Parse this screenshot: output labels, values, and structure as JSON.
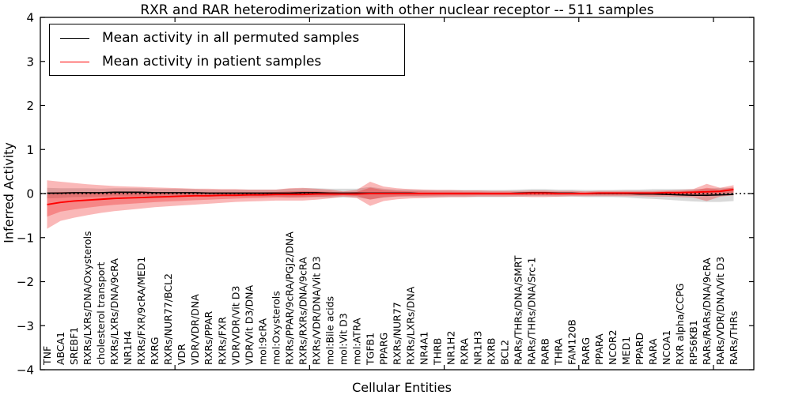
{
  "chart_data": {
    "type": "line",
    "title": "RXR and RAR heterodimerization with other nuclear receptor -- 511 samples",
    "xlabel": "Cellular Entities",
    "ylabel": "Inferred Activity",
    "ylim": [
      -4,
      4
    ],
    "yticks": [
      -4,
      -3,
      -2,
      -1,
      0,
      1,
      2,
      3,
      4
    ],
    "xticks_at_category_index": [
      10,
      20,
      30,
      40,
      50
    ],
    "grid": false,
    "legend_position": "upper left",
    "zero_reference_line": {
      "y": 0,
      "style": "dotted",
      "color": "#000000"
    },
    "categories": [
      "TNF",
      "ABCA1",
      "SREBF1",
      "RXRs/LXRs/DNA/Oxysterols",
      "cholesterol transport",
      "RXRs/LXRs/DNA/9cRA",
      "NR1H4",
      "RXRs/FXR/9cRA/MED1",
      "RXRG",
      "RXRs/NUR77/BCL2",
      "VDR",
      "VDR/VDR/DNA",
      "RXRs/PPAR",
      "RXRs/FXR",
      "VDR/VDR/Vit D3",
      "VDR/Vit D3/DNA",
      "mol:9cRA",
      "mol:Oxysterols",
      "RXRs/PPAR/9cRA/PGJ2/DNA",
      "RXRs/RXRs/DNA/9cRA",
      "RXRs/VDR/DNA/Vit D3",
      "mol:Bile acids",
      "mol:Vit D3",
      "mol:ATRA",
      "TGFB1",
      "PPARG",
      "RXRs/NUR77",
      "RXRs/LXRs/DNA",
      "NR4A1",
      "THRB",
      "NR1H2",
      "RXRA",
      "NR1H3",
      "RXRB",
      "BCL2",
      "RARs/THRs/DNA/SMRT",
      "RARs/THRs/DNA/Src-1",
      "RARB",
      "THRA",
      "FAM120B",
      "RARG",
      "PPARA",
      "NCOR2",
      "MED1",
      "PPARD",
      "RARA",
      "NCOA1",
      "RXR alpha/CCPG",
      "RPS6KB1",
      "RARs/RARs/DNA/9cRA",
      "RARs/VDR/DNA/Vit D3",
      "RARs/THRs"
    ],
    "series": [
      {
        "name": "Mean activity in all permuted samples",
        "color": "#000000",
        "band_color": "rgba(130,130,130,0.30)",
        "values": [
          0.01,
          0.01,
          0.02,
          0.02,
          0.02,
          0.03,
          0.03,
          0.03,
          0.02,
          0.02,
          0.02,
          0.02,
          0.01,
          0.01,
          0.01,
          0.01,
          0.01,
          0.01,
          0.01,
          0.02,
          0.02,
          0.01,
          0.01,
          0.01,
          0.01,
          0.01,
          0.01,
          0.01,
          0,
          0,
          0,
          0,
          0,
          0,
          0,
          0.01,
          0.02,
          0.02,
          0.01,
          0.01,
          0,
          0,
          0,
          0,
          -0.01,
          -0.01,
          -0.02,
          -0.03,
          -0.04,
          -0.04,
          -0.03,
          -0.02
        ],
        "std": [
          0.12,
          0.11,
          0.1,
          0.1,
          0.09,
          0.09,
          0.09,
          0.09,
          0.09,
          0.09,
          0.09,
          0.08,
          0.08,
          0.08,
          0.08,
          0.08,
          0.08,
          0.08,
          0.1,
          0.1,
          0.1,
          0.1,
          0.1,
          0.1,
          0.14,
          0.1,
          0.08,
          0.08,
          0.08,
          0.08,
          0.08,
          0.08,
          0.08,
          0.08,
          0.08,
          0.08,
          0.08,
          0.08,
          0.08,
          0.08,
          0.08,
          0.08,
          0.08,
          0.09,
          0.1,
          0.11,
          0.12,
          0.13,
          0.14,
          0.15,
          0.16,
          0.15
        ]
      },
      {
        "name": "Mean activity in patient samples",
        "color": "#ff0000",
        "band_color": "rgba(240,20,20,0.30)",
        "values": [
          -0.25,
          -0.2,
          -0.17,
          -0.15,
          -0.13,
          -0.11,
          -0.1,
          -0.09,
          -0.08,
          -0.07,
          -0.06,
          -0.05,
          -0.05,
          -0.04,
          -0.04,
          -0.03,
          -0.03,
          -0.02,
          -0.02,
          -0.02,
          -0.01,
          -0.01,
          -0.01,
          -0.01,
          0,
          0,
          0,
          0,
          0,
          0,
          0,
          0,
          0,
          0,
          0,
          0,
          0.01,
          0.01,
          0,
          0,
          0,
          0.01,
          0.01,
          0.01,
          0.01,
          0.01,
          0.02,
          0.02,
          0.03,
          0.04,
          0.05,
          0.09
        ],
        "band_upper": [
          0.3,
          0.27,
          0.24,
          0.21,
          0.19,
          0.17,
          0.16,
          0.15,
          0.14,
          0.13,
          0.12,
          0.11,
          0.11,
          0.1,
          0.1,
          0.09,
          0.09,
          0.09,
          0.12,
          0.13,
          0.11,
          0.09,
          0.05,
          0.08,
          0.27,
          0.16,
          0.12,
          0.1,
          0.09,
          0.08,
          0.08,
          0.07,
          0.07,
          0.06,
          0.06,
          0.06,
          0.07,
          0.07,
          0.06,
          0.06,
          0.05,
          0.06,
          0.06,
          0.06,
          0.06,
          0.06,
          0.07,
          0.08,
          0.1,
          0.22,
          0.13,
          0.19
        ],
        "band_lower": [
          -0.8,
          -0.62,
          -0.55,
          -0.49,
          -0.44,
          -0.4,
          -0.37,
          -0.34,
          -0.31,
          -0.29,
          -0.27,
          -0.25,
          -0.23,
          -0.21,
          -0.19,
          -0.18,
          -0.17,
          -0.16,
          -0.16,
          -0.16,
          -0.14,
          -0.11,
          -0.07,
          -0.1,
          -0.28,
          -0.17,
          -0.13,
          -0.11,
          -0.1,
          -0.09,
          -0.08,
          -0.08,
          -0.07,
          -0.07,
          -0.07,
          -0.07,
          -0.08,
          -0.08,
          -0.07,
          -0.06,
          -0.06,
          -0.06,
          -0.06,
          -0.06,
          -0.06,
          -0.07,
          -0.07,
          -0.08,
          -0.09,
          -0.17,
          -0.07,
          -0.04
        ]
      }
    ]
  }
}
